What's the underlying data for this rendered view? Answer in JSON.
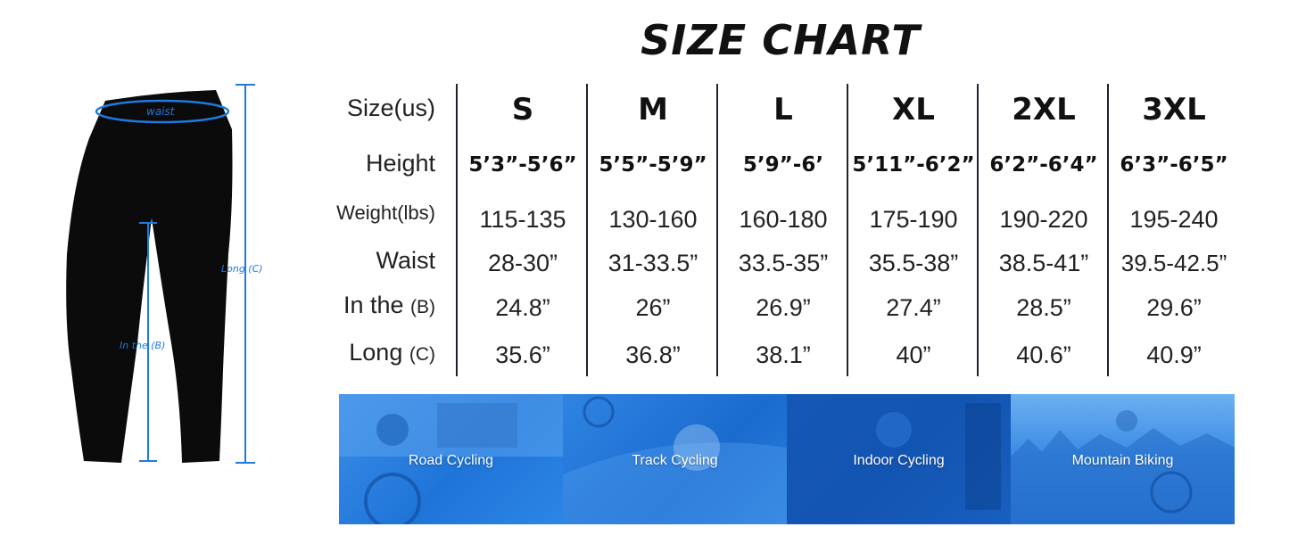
{
  "title": "SIZE CHART",
  "figure": {
    "waist_label": "waist",
    "inseam_label": "In the (B)",
    "long_label": "Long (C)"
  },
  "rows": [
    {
      "label": "Size(us)",
      "suffix": ""
    },
    {
      "label": "Height",
      "suffix": ""
    },
    {
      "label": "Weight(lbs)",
      "suffix": ""
    },
    {
      "label": "Waist",
      "suffix": ""
    },
    {
      "label": "In the ",
      "suffix": "(B)"
    },
    {
      "label": "Long ",
      "suffix": "(C)"
    }
  ],
  "sizes": [
    {
      "size": "S",
      "height": "5’3”-5’6”",
      "weight": "115-135",
      "waist": "28-30”",
      "inseam": "24.8”",
      "long": "35.6”"
    },
    {
      "size": "M",
      "height": "5’5”-5’9”",
      "weight": "130-160",
      "waist": "31-33.5”",
      "inseam": "26”",
      "long": "36.8”"
    },
    {
      "size": "L",
      "height": "5’9”-6’",
      "weight": "160-180",
      "waist": "33.5-35”",
      "inseam": "26.9”",
      "long": "38.1”"
    },
    {
      "size": "XL",
      "height": "5’11”-6’2”",
      "weight": "175-190",
      "waist": "35.5-38”",
      "inseam": "27.4”",
      "long": "40”"
    },
    {
      "size": "2XL",
      "height": "6’2”-6’4”",
      "weight": "190-220",
      "waist": "38.5-41”",
      "inseam": "28.5”",
      "long": "40.6”"
    },
    {
      "size": "3XL",
      "height": "6’3”-6’5”",
      "weight": "195-240",
      "waist": "39.5-42.5”",
      "inseam": "29.6”",
      "long": "40.9”"
    }
  ],
  "banner": {
    "panels": [
      {
        "label": "Road Cycling"
      },
      {
        "label": "Track Cycling"
      },
      {
        "label": "Indoor Cycling"
      },
      {
        "label": "Mountain Biking"
      }
    ]
  },
  "colors": {
    "measure_blue": "#1f7ae0",
    "banner_blue": "#2a7fe0",
    "divider": "#1e2330"
  }
}
